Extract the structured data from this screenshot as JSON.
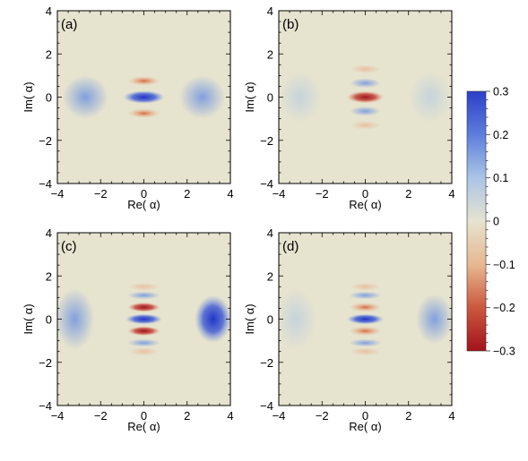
{
  "chart_data": {
    "type": "heatmap",
    "panels": [
      {
        "id": "a",
        "label": "(a)",
        "xlabel": "Re( α)",
        "ylabel": "Im( α)",
        "xlim": [
          -4,
          4
        ],
        "ylim": [
          -4,
          4
        ],
        "xticks": [
          "−4",
          "−2",
          "0",
          "2",
          "4"
        ],
        "yticks": [
          "−4",
          "−2",
          "0",
          "2",
          "4"
        ]
      },
      {
        "id": "b",
        "label": "(b)",
        "xlabel": "Re( α)",
        "ylabel": "Im( α)",
        "xlim": [
          -4,
          4
        ],
        "ylim": [
          -4,
          4
        ],
        "xticks": [
          "−4",
          "−2",
          "0",
          "2",
          "4"
        ],
        "yticks": [
          "−4",
          "−2",
          "0",
          "2",
          "4"
        ]
      },
      {
        "id": "c",
        "label": "(c)",
        "xlabel": "Re( α)",
        "ylabel": "Im( α)",
        "xlim": [
          -4,
          4
        ],
        "ylim": [
          -4,
          4
        ],
        "xticks": [
          "−4",
          "−2",
          "0",
          "2",
          "4"
        ],
        "yticks": [
          "−4",
          "−2",
          "0",
          "2",
          "4"
        ]
      },
      {
        "id": "d",
        "label": "(d)",
        "xlabel": "Re( α)",
        "ylabel": "Im( α)",
        "xlim": [
          -4,
          4
        ],
        "ylim": [
          -4,
          4
        ],
        "xticks": [
          "−4",
          "−2",
          "0",
          "2",
          "4"
        ],
        "yticks": [
          "−4",
          "−2",
          "0",
          "2",
          "4"
        ]
      }
    ],
    "colorbar": {
      "range": [
        -0.3,
        0.3
      ],
      "ticks": [
        "0.3",
        "0.2",
        "0.1",
        "0",
        "−0.1",
        "−0.2",
        "−0.3"
      ],
      "colors": {
        "max": "#2b3fc9",
        "mid": "#e6e3cf",
        "min": "#a3121c"
      }
    }
  }
}
